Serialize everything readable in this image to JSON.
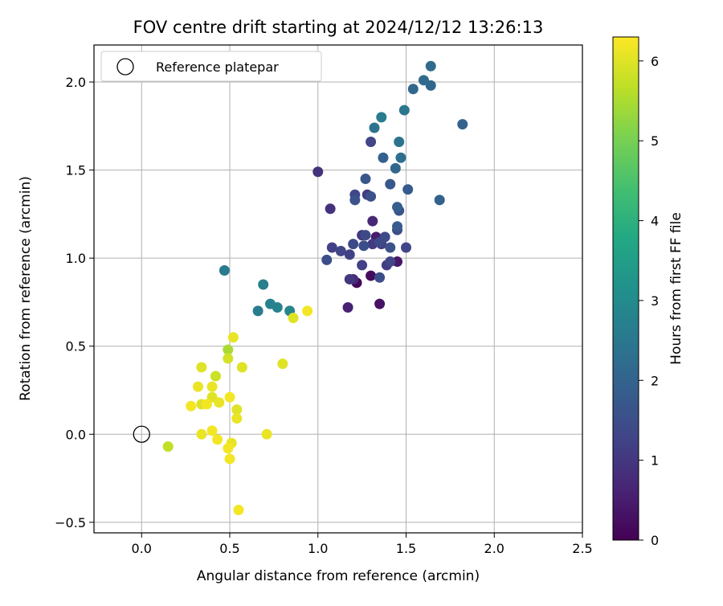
{
  "chart_data": {
    "type": "scatter",
    "title": "FOV centre drift starting at 2024/12/12 13:26:13",
    "xlabel": "Angular distance from reference (arcmin)",
    "ylabel": "Rotation from reference (arcmin)",
    "xlim": [
      -0.27,
      2.5
    ],
    "ylim": [
      -0.56,
      2.21
    ],
    "xticks": [
      0.0,
      0.5,
      1.0,
      1.5,
      2.0,
      2.5
    ],
    "xtick_labels": [
      "0.0",
      "0.5",
      "1.0",
      "1.5",
      "2.0",
      "2.5"
    ],
    "yticks": [
      -0.5,
      0.0,
      0.5,
      1.0,
      1.5,
      2.0
    ],
    "ytick_labels": [
      "−0.5",
      "0.0",
      "0.5",
      "1.0",
      "1.5",
      "2.0"
    ],
    "grid": true,
    "legend": {
      "location": "top-left",
      "entries": [
        {
          "label": "Reference platepar",
          "marker": "open-circle"
        }
      ]
    },
    "reference_point": {
      "x": 0.0,
      "y": 0.0
    },
    "colorbar": {
      "label": "Hours from first FF file",
      "colormap": "viridis",
      "range": [
        0,
        6.3
      ],
      "ticks": [
        0,
        1,
        2,
        3,
        4,
        5,
        6
      ],
      "tick_labels": [
        "0",
        "1",
        "2",
        "3",
        "4",
        "5",
        "6"
      ]
    },
    "points": [
      {
        "x": 1.22,
        "y": 0.86,
        "c": 0.1
      },
      {
        "x": 1.3,
        "y": 0.9,
        "c": 0.2
      },
      {
        "x": 1.35,
        "y": 0.74,
        "c": 0.3
      },
      {
        "x": 1.45,
        "y": 0.98,
        "c": 0.4
      },
      {
        "x": 1.33,
        "y": 1.12,
        "c": 0.5
      },
      {
        "x": 1.17,
        "y": 0.72,
        "c": 0.6
      },
      {
        "x": 1.31,
        "y": 1.21,
        "c": 0.7
      },
      {
        "x": 1.2,
        "y": 0.88,
        "c": 0.8
      },
      {
        "x": 1.0,
        "y": 1.49,
        "c": 0.9
      },
      {
        "x": 1.07,
        "y": 1.28,
        "c": 0.9
      },
      {
        "x": 1.18,
        "y": 0.88,
        "c": 1.0
      },
      {
        "x": 1.25,
        "y": 1.13,
        "c": 1.0
      },
      {
        "x": 1.31,
        "y": 1.08,
        "c": 1.1
      },
      {
        "x": 1.28,
        "y": 1.36,
        "c": 1.1
      },
      {
        "x": 1.39,
        "y": 0.96,
        "c": 1.1
      },
      {
        "x": 1.08,
        "y": 1.06,
        "c": 1.2
      },
      {
        "x": 1.18,
        "y": 1.02,
        "c": 1.2
      },
      {
        "x": 1.25,
        "y": 0.96,
        "c": 1.2
      },
      {
        "x": 1.36,
        "y": 1.08,
        "c": 1.2
      },
      {
        "x": 1.21,
        "y": 1.36,
        "c": 1.3
      },
      {
        "x": 1.3,
        "y": 1.66,
        "c": 1.3
      },
      {
        "x": 1.41,
        "y": 0.98,
        "c": 1.3
      },
      {
        "x": 1.5,
        "y": 1.06,
        "c": 1.3
      },
      {
        "x": 1.13,
        "y": 1.04,
        "c": 1.3
      },
      {
        "x": 1.2,
        "y": 1.08,
        "c": 1.4
      },
      {
        "x": 1.27,
        "y": 1.13,
        "c": 1.4
      },
      {
        "x": 1.35,
        "y": 1.09,
        "c": 1.4
      },
      {
        "x": 1.38,
        "y": 1.12,
        "c": 1.4
      },
      {
        "x": 1.05,
        "y": 0.99,
        "c": 1.5
      },
      {
        "x": 1.26,
        "y": 1.07,
        "c": 1.5
      },
      {
        "x": 1.35,
        "y": 0.89,
        "c": 1.5
      },
      {
        "x": 1.45,
        "y": 1.16,
        "c": 1.5
      },
      {
        "x": 1.21,
        "y": 1.33,
        "c": 1.6
      },
      {
        "x": 1.3,
        "y": 1.35,
        "c": 1.6
      },
      {
        "x": 1.41,
        "y": 1.06,
        "c": 1.6
      },
      {
        "x": 1.46,
        "y": 1.27,
        "c": 1.6
      },
      {
        "x": 1.27,
        "y": 1.45,
        "c": 1.7
      },
      {
        "x": 1.41,
        "y": 1.42,
        "c": 1.7
      },
      {
        "x": 1.45,
        "y": 1.18,
        "c": 1.8
      },
      {
        "x": 1.51,
        "y": 1.39,
        "c": 1.8
      },
      {
        "x": 1.45,
        "y": 1.29,
        "c": 1.9
      },
      {
        "x": 1.37,
        "y": 1.57,
        "c": 1.9
      },
      {
        "x": 1.69,
        "y": 1.33,
        "c": 2.0
      },
      {
        "x": 1.82,
        "y": 1.76,
        "c": 2.0
      },
      {
        "x": 1.64,
        "y": 1.98,
        "c": 2.1
      },
      {
        "x": 1.54,
        "y": 1.96,
        "c": 2.1
      },
      {
        "x": 1.44,
        "y": 1.51,
        "c": 2.1
      },
      {
        "x": 1.64,
        "y": 2.09,
        "c": 2.2
      },
      {
        "x": 1.6,
        "y": 2.01,
        "c": 2.2
      },
      {
        "x": 1.47,
        "y": 1.57,
        "c": 2.3
      },
      {
        "x": 1.46,
        "y": 1.66,
        "c": 2.4
      },
      {
        "x": 1.32,
        "y": 1.74,
        "c": 2.4
      },
      {
        "x": 1.49,
        "y": 1.84,
        "c": 2.5
      },
      {
        "x": 1.36,
        "y": 1.8,
        "c": 2.6
      },
      {
        "x": 0.47,
        "y": 0.93,
        "c": 2.6
      },
      {
        "x": 0.66,
        "y": 0.7,
        "c": 2.6
      },
      {
        "x": 0.69,
        "y": 0.85,
        "c": 2.7
      },
      {
        "x": 0.73,
        "y": 0.74,
        "c": 2.8
      },
      {
        "x": 0.77,
        "y": 0.72,
        "c": 2.8
      },
      {
        "x": 0.84,
        "y": 0.7,
        "c": 2.9
      },
      {
        "x": 0.86,
        "y": 0.66,
        "c": 6.0
      },
      {
        "x": 0.94,
        "y": 0.7,
        "c": 6.2
      },
      {
        "x": 0.52,
        "y": 0.55,
        "c": 6.1
      },
      {
        "x": 0.49,
        "y": 0.48,
        "c": 5.5
      },
      {
        "x": 0.49,
        "y": 0.43,
        "c": 5.9
      },
      {
        "x": 0.57,
        "y": 0.38,
        "c": 6.0
      },
      {
        "x": 0.34,
        "y": 0.38,
        "c": 6.0
      },
      {
        "x": 0.42,
        "y": 0.33,
        "c": 5.8
      },
      {
        "x": 0.8,
        "y": 0.4,
        "c": 6.0
      },
      {
        "x": 0.32,
        "y": 0.27,
        "c": 6.1
      },
      {
        "x": 0.4,
        "y": 0.27,
        "c": 6.1
      },
      {
        "x": 0.4,
        "y": 0.21,
        "c": 6.0
      },
      {
        "x": 0.5,
        "y": 0.21,
        "c": 6.2
      },
      {
        "x": 0.44,
        "y": 0.18,
        "c": 6.1
      },
      {
        "x": 0.34,
        "y": 0.17,
        "c": 6.0
      },
      {
        "x": 0.37,
        "y": 0.17,
        "c": 6.2
      },
      {
        "x": 0.28,
        "y": 0.16,
        "c": 6.2
      },
      {
        "x": 0.54,
        "y": 0.14,
        "c": 6.0
      },
      {
        "x": 0.54,
        "y": 0.09,
        "c": 6.1
      },
      {
        "x": 0.4,
        "y": 0.02,
        "c": 6.2
      },
      {
        "x": 0.34,
        "y": 0.0,
        "c": 6.1
      },
      {
        "x": 0.71,
        "y": 0.0,
        "c": 6.1
      },
      {
        "x": 0.43,
        "y": -0.03,
        "c": 6.2
      },
      {
        "x": 0.51,
        "y": -0.05,
        "c": 6.1
      },
      {
        "x": 0.15,
        "y": -0.07,
        "c": 5.7
      },
      {
        "x": 0.49,
        "y": -0.08,
        "c": 6.2
      },
      {
        "x": 0.5,
        "y": -0.14,
        "c": 6.2
      },
      {
        "x": 0.55,
        "y": -0.43,
        "c": 6.2
      }
    ]
  }
}
